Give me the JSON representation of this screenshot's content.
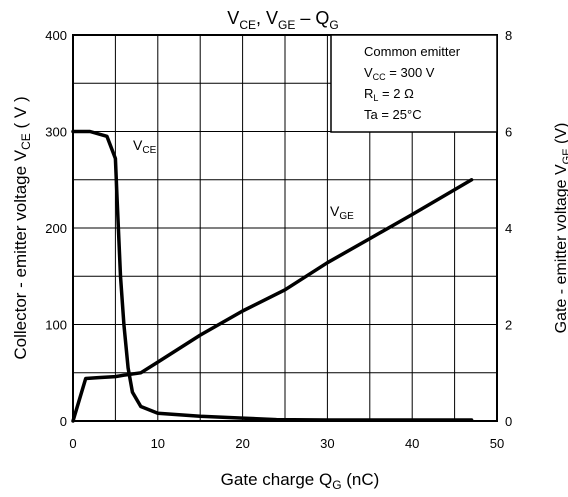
{
  "chart_data": {
    "type": "line",
    "title": {
      "main": "V",
      "sub1": "CE",
      "mid": ", V",
      "sub2": "GE",
      "tail": " – Q",
      "sub3": "G"
    },
    "xlabel": {
      "main": "Gate charge    Q",
      "sub": "G",
      "tail": "    (nC)"
    },
    "ylabel_left": {
      "main": "Collector - emitter voltage    V",
      "sub": "CE",
      "tail": "    ( V )"
    },
    "ylabel_right": {
      "main": "Gate - emitter voltage    V",
      "sub": "GE",
      "tail": "    (V)"
    },
    "xlim": [
      0,
      50
    ],
    "ylim_left": [
      0,
      400
    ],
    "ylim_right": [
      0,
      8
    ],
    "xticks": [
      "0",
      "10",
      "20",
      "30",
      "40",
      "50"
    ],
    "yticks_left": [
      "0",
      "100",
      "200",
      "300",
      "400"
    ],
    "yticks_right": [
      "0",
      "2",
      "4",
      "6",
      "8"
    ],
    "grid": true,
    "conditions": {
      "line1": "Common emitter",
      "line2": {
        "main": "V",
        "sub": "CC",
        "tail": " = 300 V"
      },
      "line3": {
        "main": "R",
        "sub": "L",
        "tail": " = 2 Ω"
      },
      "line4": "Ta = 25°C"
    },
    "series": [
      {
        "name": {
          "main": "V",
          "sub": "CE"
        },
        "axis": "left",
        "x": [
          0,
          2,
          4,
          5,
          5.2,
          5.6,
          6,
          6.5,
          7,
          8,
          10,
          15,
          20,
          24,
          30,
          40,
          47
        ],
        "y": [
          300,
          300,
          295,
          272,
          230,
          150,
          100,
          55,
          30,
          15,
          8,
          5,
          3,
          1.5,
          1,
          1,
          1
        ]
      },
      {
        "name": {
          "main": "V",
          "sub": "GE"
        },
        "axis": "right",
        "x": [
          0,
          1.5,
          3,
          5,
          6,
          8,
          10,
          15,
          20,
          25,
          30,
          35,
          40,
          47
        ],
        "y": [
          0,
          0.88,
          0.9,
          0.92,
          0.95,
          1.0,
          1.22,
          1.78,
          2.28,
          2.72,
          3.28,
          3.78,
          4.28,
          5.0
        ]
      }
    ]
  }
}
